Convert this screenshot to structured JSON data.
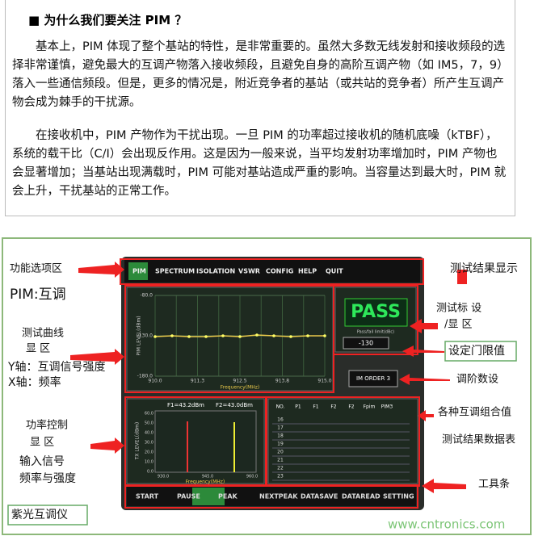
{
  "header": {
    "title": "为什么我们要关注 PIM ？"
  },
  "paragraphs": [
    "基本上，PIM 体现了整个基站的特性，是非常重要的。虽然大多数无线发射和接收频段的选择非常谨慎，避免最大的互调产物落入接收频段，且避免自身的高阶互调产物（如 IM5，7，9）落入一些通信频段。但是，更多的情况是，附近竞争者的基站（或共站的竞争者）所产生互调产物会成为棘手的干扰源。",
    "在接收机中，PIM 产物作为干扰出现。一旦 PIM 的功率超过接收机的随机底噪（kTBF），系统的载干比（C/I）会出现反作用。这是因为一般来说，当平均发射功率增加时，PIM 产物也会显著增加；当基站出现满载时，PIM 可能对基站造成严重的影响。当容量达到最大时，PIM 就会上升，干扰基站的正常工作。"
  ],
  "figure": {
    "menu": [
      "PIM",
      "SPECTRUM",
      "ISOLATION",
      "VSWR",
      "CONFIG",
      "HELP",
      "QUIT"
    ],
    "toolbar": [
      "START",
      "PAUSE",
      "PEAK",
      "NEXTPEAK",
      "DATASAVE",
      "DATAREAD",
      "SETTING"
    ],
    "pim_chart": {
      "y_label": "PIM LEVEL(dBm)",
      "x_label": "Frequency(MHz)",
      "yticks": [
        "-80.0",
        "-130.0",
        "-180.0"
      ],
      "xticks": [
        "910.0",
        "911.3",
        "912.5",
        "913.8",
        "915.0"
      ],
      "ylim": [
        -180,
        -80
      ],
      "xlim": [
        910,
        915
      ],
      "x": [
        910,
        910.5,
        911,
        911.5,
        912,
        912.5,
        913,
        913.5,
        914,
        914.5,
        915
      ],
      "values": [
        -131,
        -130,
        -131,
        -131,
        -130,
        -131,
        -129,
        -130,
        -131,
        -130,
        -130
      ]
    },
    "pass": "PASS",
    "pass_note": "Pass/fail limit(dBc)",
    "limit": "-130",
    "im_order": "IM ORDER 3",
    "power_chart": {
      "y_label": "TX LEVEL(dBm)",
      "x_label": "Frequency(MHz)",
      "f1": "F1=43.2dBm",
      "f2": "F2=43.0dBm",
      "yticks": [
        "60.0",
        "50.0",
        "40.0",
        "30.0",
        "20.0",
        "10.0",
        "0.0"
      ],
      "xticks": [
        "930.0",
        "945.0",
        "960.0"
      ]
    },
    "table": {
      "headers": [
        "NO.",
        "P1",
        "F1",
        "F2",
        "F2",
        "Fpim",
        "PIM3"
      ],
      "row_numbers": [
        "16",
        "17",
        "18",
        "19",
        "20",
        "21",
        "22",
        "23"
      ]
    },
    "annotations_left": [
      "功能选项区",
      "PIM:互调",
      "测试曲线",
      "显 区",
      "Y轴：互调信号强度",
      "X轴：频率",
      "功率控制",
      "显 区",
      "输入信号",
      "频率与强度",
      "紫光互调仪"
    ],
    "annotations_right": [
      "测试结果显示",
      "测试标 设",
      "/显 区",
      "设定门限值",
      "调阶数设",
      "各种互调组合值",
      "测试结果数据表",
      "工具条"
    ],
    "watermark": "www.cntronics.com"
  }
}
